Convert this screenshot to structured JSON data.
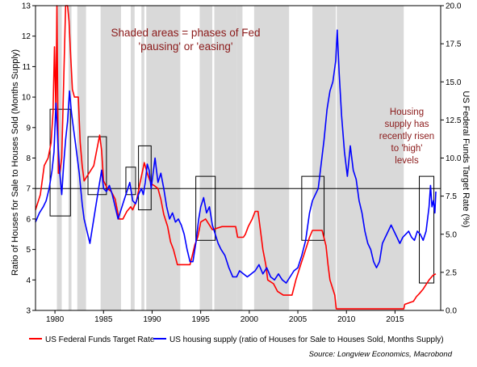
{
  "chart_data": {
    "type": "line",
    "title": "",
    "annotations": {
      "shaded_note": [
        "Shaded areas = phases of Fed",
        "'pausing' or 'easing'"
      ],
      "housing_note": [
        "Housing",
        "supply has",
        "recently risen",
        "to 'high'",
        "levels"
      ]
    },
    "left_axis": {
      "label": "Ratio of Houses for Sale to Houses Sold (Months Supply)",
      "ylim": [
        3,
        13
      ],
      "ticks": [
        "3",
        "4",
        "5",
        "6",
        "7",
        "8",
        "9",
        "10",
        "11",
        "12",
        "13"
      ]
    },
    "right_axis": {
      "label": "US Federal Funds Target Rate (%)",
      "ylim": [
        0,
        20
      ],
      "ticks": [
        "0.0",
        "2.5",
        "5.0",
        "7.5",
        "10.0",
        "12.5",
        "15.0",
        "17.5",
        "20.0"
      ]
    },
    "x_axis": {
      "xlim": [
        1978,
        2019.7
      ],
      "ticks": [
        "1980",
        "1985",
        "1990",
        "1995",
        "2000",
        "2005",
        "2010",
        "2015"
      ]
    },
    "reference_line": {
      "axis": "left",
      "value": 7
    },
    "shaded_periods": [
      [
        1980.2,
        1980.7
      ],
      [
        1981.4,
        1981.7
      ],
      [
        1982.3,
        1983.2
      ],
      [
        1984.7,
        1986.8
      ],
      [
        1987.8,
        1988.2
      ],
      [
        1988.9,
        1989.2
      ],
      [
        1989.4,
        1992.9
      ],
      [
        1994.9,
        1996.2
      ],
      [
        1996.4,
        1998.7
      ],
      [
        1998.7,
        1999.3
      ],
      [
        2000.5,
        2004.1
      ],
      [
        2006.5,
        2008.9
      ],
      [
        2009.0,
        2015.9
      ]
    ],
    "boxes": [
      {
        "x": [
          1979.5,
          1981.6
        ],
        "y": [
          6.1,
          9.6
        ]
      },
      {
        "x": [
          1983.4,
          1985.3
        ],
        "y": [
          6.8,
          8.7
        ]
      },
      {
        "x": [
          1987.3,
          1988.3
        ],
        "y": [
          6.8,
          7.7
        ]
      },
      {
        "x": [
          1988.6,
          1989.9
        ],
        "y": [
          6.3,
          8.4
        ]
      },
      {
        "x": [
          1994.5,
          1996.5
        ],
        "y": [
          5.3,
          7.4
        ]
      },
      {
        "x": [
          2005.4,
          2007.7
        ],
        "y": [
          5.3,
          7.4
        ]
      },
      {
        "x": [
          2017.5,
          2019.0
        ],
        "y": [
          3.9,
          7.4
        ]
      }
    ],
    "series": [
      {
        "name": "US Federal Funds Target Rate",
        "axis": "right",
        "color": "#ff0000",
        "points": [
          [
            1978.0,
            6.6
          ],
          [
            1978.5,
            7.6
          ],
          [
            1978.9,
            9.5
          ],
          [
            1979.3,
            10.0
          ],
          [
            1979.6,
            11.0
          ],
          [
            1979.8,
            13.0
          ],
          [
            1979.95,
            17.3
          ],
          [
            1980.1,
            13.0
          ],
          [
            1980.2,
            20.0
          ],
          [
            1980.35,
            9.0
          ],
          [
            1980.5,
            9.0
          ],
          [
            1980.7,
            10.0
          ],
          [
            1980.9,
            15.0
          ],
          [
            1981.1,
            20.0
          ],
          [
            1981.3,
            20.0
          ],
          [
            1981.45,
            19.0
          ],
          [
            1981.6,
            17.0
          ],
          [
            1981.8,
            14.5
          ],
          [
            1982.0,
            14.0
          ],
          [
            1982.4,
            14.0
          ],
          [
            1982.6,
            11.0
          ],
          [
            1982.8,
            9.5
          ],
          [
            1983.0,
            8.5
          ],
          [
            1983.5,
            9.0
          ],
          [
            1984.0,
            9.5
          ],
          [
            1984.3,
            10.5
          ],
          [
            1984.6,
            11.5
          ],
          [
            1984.8,
            10.5
          ],
          [
            1985.0,
            8.5
          ],
          [
            1985.4,
            8.0
          ],
          [
            1985.8,
            7.8
          ],
          [
            1986.2,
            7.3
          ],
          [
            1986.6,
            6.0
          ],
          [
            1987.0,
            6.0
          ],
          [
            1987.4,
            6.5
          ],
          [
            1987.8,
            6.8
          ],
          [
            1988.0,
            6.6
          ],
          [
            1988.4,
            7.2
          ],
          [
            1988.8,
            8.5
          ],
          [
            1989.2,
            9.7
          ],
          [
            1989.5,
            9.0
          ],
          [
            1989.9,
            8.3
          ],
          [
            1990.2,
            8.2
          ],
          [
            1990.6,
            8.0
          ],
          [
            1990.9,
            7.3
          ],
          [
            1991.2,
            6.3
          ],
          [
            1991.6,
            5.5
          ],
          [
            1991.9,
            4.5
          ],
          [
            1992.2,
            4.0
          ],
          [
            1992.6,
            3.0
          ],
          [
            1993.0,
            3.0
          ],
          [
            1993.9,
            3.0
          ],
          [
            1994.1,
            3.5
          ],
          [
            1994.4,
            4.3
          ],
          [
            1994.7,
            4.8
          ],
          [
            1995.0,
            5.8
          ],
          [
            1995.5,
            6.0
          ],
          [
            1995.9,
            5.6
          ],
          [
            1996.2,
            5.3
          ],
          [
            1997.2,
            5.5
          ],
          [
            1998.6,
            5.5
          ],
          [
            1998.8,
            4.8
          ],
          [
            1999.4,
            4.8
          ],
          [
            1999.6,
            5.0
          ],
          [
            1999.9,
            5.5
          ],
          [
            2000.3,
            6.0
          ],
          [
            2000.6,
            6.5
          ],
          [
            2000.9,
            6.5
          ],
          [
            2001.1,
            5.5
          ],
          [
            2001.4,
            4.0
          ],
          [
            2001.7,
            3.0
          ],
          [
            2001.9,
            2.0
          ],
          [
            2002.5,
            1.75
          ],
          [
            2002.9,
            1.25
          ],
          [
            2003.5,
            1.0
          ],
          [
            2004.4,
            1.0
          ],
          [
            2004.8,
            2.0
          ],
          [
            2005.3,
            3.0
          ],
          [
            2005.8,
            4.0
          ],
          [
            2006.2,
            4.8
          ],
          [
            2006.5,
            5.25
          ],
          [
            2007.5,
            5.25
          ],
          [
            2007.8,
            4.5
          ],
          [
            2007.9,
            4.25
          ],
          [
            2008.1,
            3.0
          ],
          [
            2008.3,
            2.0
          ],
          [
            2008.8,
            1.0
          ],
          [
            2008.95,
            0.1
          ],
          [
            2015.9,
            0.1
          ],
          [
            2016.0,
            0.4
          ],
          [
            2016.9,
            0.6
          ],
          [
            2017.2,
            0.9
          ],
          [
            2017.5,
            1.1
          ],
          [
            2017.9,
            1.4
          ],
          [
            2018.2,
            1.7
          ],
          [
            2018.5,
            2.0
          ],
          [
            2018.9,
            2.3
          ],
          [
            2019.2,
            2.4
          ]
        ]
      },
      {
        "name": "US housing supply (ratio of Houses for Sale to Houses Sold, Months Supply)",
        "axis": "left",
        "color": "#0000ff",
        "points": [
          [
            1978.0,
            5.9
          ],
          [
            1978.4,
            6.2
          ],
          [
            1978.8,
            6.4
          ],
          [
            1979.1,
            6.6
          ],
          [
            1979.4,
            7.0
          ],
          [
            1979.7,
            7.6
          ],
          [
            1979.9,
            8.2
          ],
          [
            1980.1,
            9.8
          ],
          [
            1980.3,
            8.5
          ],
          [
            1980.5,
            7.5
          ],
          [
            1980.7,
            6.8
          ],
          [
            1980.9,
            7.8
          ],
          [
            1981.1,
            8.6
          ],
          [
            1981.3,
            9.2
          ],
          [
            1981.5,
            10.2
          ],
          [
            1981.7,
            9.5
          ],
          [
            1981.9,
            9.0
          ],
          [
            1982.1,
            8.5
          ],
          [
            1982.3,
            8.0
          ],
          [
            1982.5,
            7.5
          ],
          [
            1982.8,
            6.5
          ],
          [
            1983.0,
            6.0
          ],
          [
            1983.3,
            5.6
          ],
          [
            1983.6,
            5.2
          ],
          [
            1983.9,
            5.8
          ],
          [
            1984.2,
            6.4
          ],
          [
            1984.5,
            7.0
          ],
          [
            1984.8,
            7.6
          ],
          [
            1985.0,
            7.0
          ],
          [
            1985.3,
            6.9
          ],
          [
            1985.6,
            7.1
          ],
          [
            1985.9,
            6.8
          ],
          [
            1986.2,
            6.4
          ],
          [
            1986.5,
            6.0
          ],
          [
            1986.8,
            6.3
          ],
          [
            1987.1,
            6.6
          ],
          [
            1987.4,
            6.9
          ],
          [
            1987.7,
            7.2
          ],
          [
            1988.0,
            6.6
          ],
          [
            1988.3,
            6.5
          ],
          [
            1988.6,
            6.8
          ],
          [
            1988.9,
            7.0
          ],
          [
            1989.1,
            6.8
          ],
          [
            1989.3,
            7.2
          ],
          [
            1989.5,
            7.8
          ],
          [
            1989.7,
            7.6
          ],
          [
            1989.9,
            7.0
          ],
          [
            1990.1,
            7.5
          ],
          [
            1990.3,
            8.0
          ],
          [
            1990.6,
            7.2
          ],
          [
            1990.9,
            7.5
          ],
          [
            1991.2,
            7.0
          ],
          [
            1991.5,
            6.4
          ],
          [
            1991.8,
            6.0
          ],
          [
            1992.1,
            6.2
          ],
          [
            1992.4,
            5.9
          ],
          [
            1992.7,
            6.0
          ],
          [
            1993.0,
            5.8
          ],
          [
            1993.3,
            5.5
          ],
          [
            1993.6,
            5.0
          ],
          [
            1993.9,
            4.6
          ],
          [
            1994.2,
            4.6
          ],
          [
            1994.5,
            5.2
          ],
          [
            1994.8,
            6.0
          ],
          [
            1995.0,
            6.4
          ],
          [
            1995.3,
            6.7
          ],
          [
            1995.6,
            6.2
          ],
          [
            1995.9,
            6.4
          ],
          [
            1996.2,
            5.8
          ],
          [
            1996.5,
            5.5
          ],
          [
            1996.8,
            5.2
          ],
          [
            1997.1,
            5.0
          ],
          [
            1997.5,
            4.8
          ],
          [
            1997.9,
            4.4
          ],
          [
            1998.3,
            4.1
          ],
          [
            1998.7,
            4.1
          ],
          [
            1999.0,
            4.3
          ],
          [
            1999.4,
            4.2
          ],
          [
            1999.8,
            4.1
          ],
          [
            2000.2,
            4.2
          ],
          [
            2000.6,
            4.3
          ],
          [
            2001.0,
            4.5
          ],
          [
            2001.4,
            4.2
          ],
          [
            2001.8,
            4.4
          ],
          [
            2002.2,
            4.1
          ],
          [
            2002.6,
            4.0
          ],
          [
            2003.0,
            4.2
          ],
          [
            2003.4,
            4.0
          ],
          [
            2003.8,
            3.9
          ],
          [
            2004.2,
            4.1
          ],
          [
            2004.6,
            4.3
          ],
          [
            2005.0,
            4.4
          ],
          [
            2005.4,
            4.8
          ],
          [
            2005.8,
            5.3
          ],
          [
            2006.2,
            6.2
          ],
          [
            2006.5,
            6.6
          ],
          [
            2006.8,
            6.8
          ],
          [
            2007.1,
            7.0
          ],
          [
            2007.4,
            7.8
          ],
          [
            2007.7,
            8.6
          ],
          [
            2008.0,
            9.6
          ],
          [
            2008.3,
            10.2
          ],
          [
            2008.6,
            10.5
          ],
          [
            2008.9,
            11.2
          ],
          [
            2009.05,
            12.2
          ],
          [
            2009.25,
            10.8
          ],
          [
            2009.5,
            9.4
          ],
          [
            2009.8,
            8.2
          ],
          [
            2010.1,
            7.4
          ],
          [
            2010.4,
            8.4
          ],
          [
            2010.7,
            7.6
          ],
          [
            2011.0,
            7.3
          ],
          [
            2011.3,
            6.6
          ],
          [
            2011.6,
            6.2
          ],
          [
            2011.9,
            5.6
          ],
          [
            2012.2,
            5.2
          ],
          [
            2012.5,
            5.0
          ],
          [
            2012.8,
            4.6
          ],
          [
            2013.1,
            4.4
          ],
          [
            2013.4,
            4.6
          ],
          [
            2013.7,
            5.2
          ],
          [
            2014.0,
            5.4
          ],
          [
            2014.3,
            5.6
          ],
          [
            2014.6,
            5.8
          ],
          [
            2014.9,
            5.6
          ],
          [
            2015.2,
            5.4
          ],
          [
            2015.5,
            5.2
          ],
          [
            2015.8,
            5.4
          ],
          [
            2016.1,
            5.5
          ],
          [
            2016.4,
            5.6
          ],
          [
            2016.7,
            5.4
          ],
          [
            2017.0,
            5.3
          ],
          [
            2017.3,
            5.6
          ],
          [
            2017.6,
            5.5
          ],
          [
            2017.9,
            5.3
          ],
          [
            2018.2,
            5.6
          ],
          [
            2018.5,
            6.4
          ],
          [
            2018.65,
            7.1
          ],
          [
            2018.8,
            6.4
          ],
          [
            2018.95,
            6.6
          ],
          [
            2019.1,
            6.2
          ],
          [
            2019.2,
            6.9
          ]
        ]
      }
    ],
    "legend": {
      "placement": "bottom",
      "items": [
        "US Federal Funds Target Rate",
        "US housing supply (ratio of Houses for Sale to Houses Sold, Months Supply)"
      ]
    },
    "source": "Source: Longview Economics, Macrobond"
  },
  "colors": {
    "shade": "#d9d9d9",
    "annotation": "#8b1a1a",
    "fed_rate": "#ff0000",
    "housing_supply": "#0000ff",
    "reference": "#000000"
  }
}
